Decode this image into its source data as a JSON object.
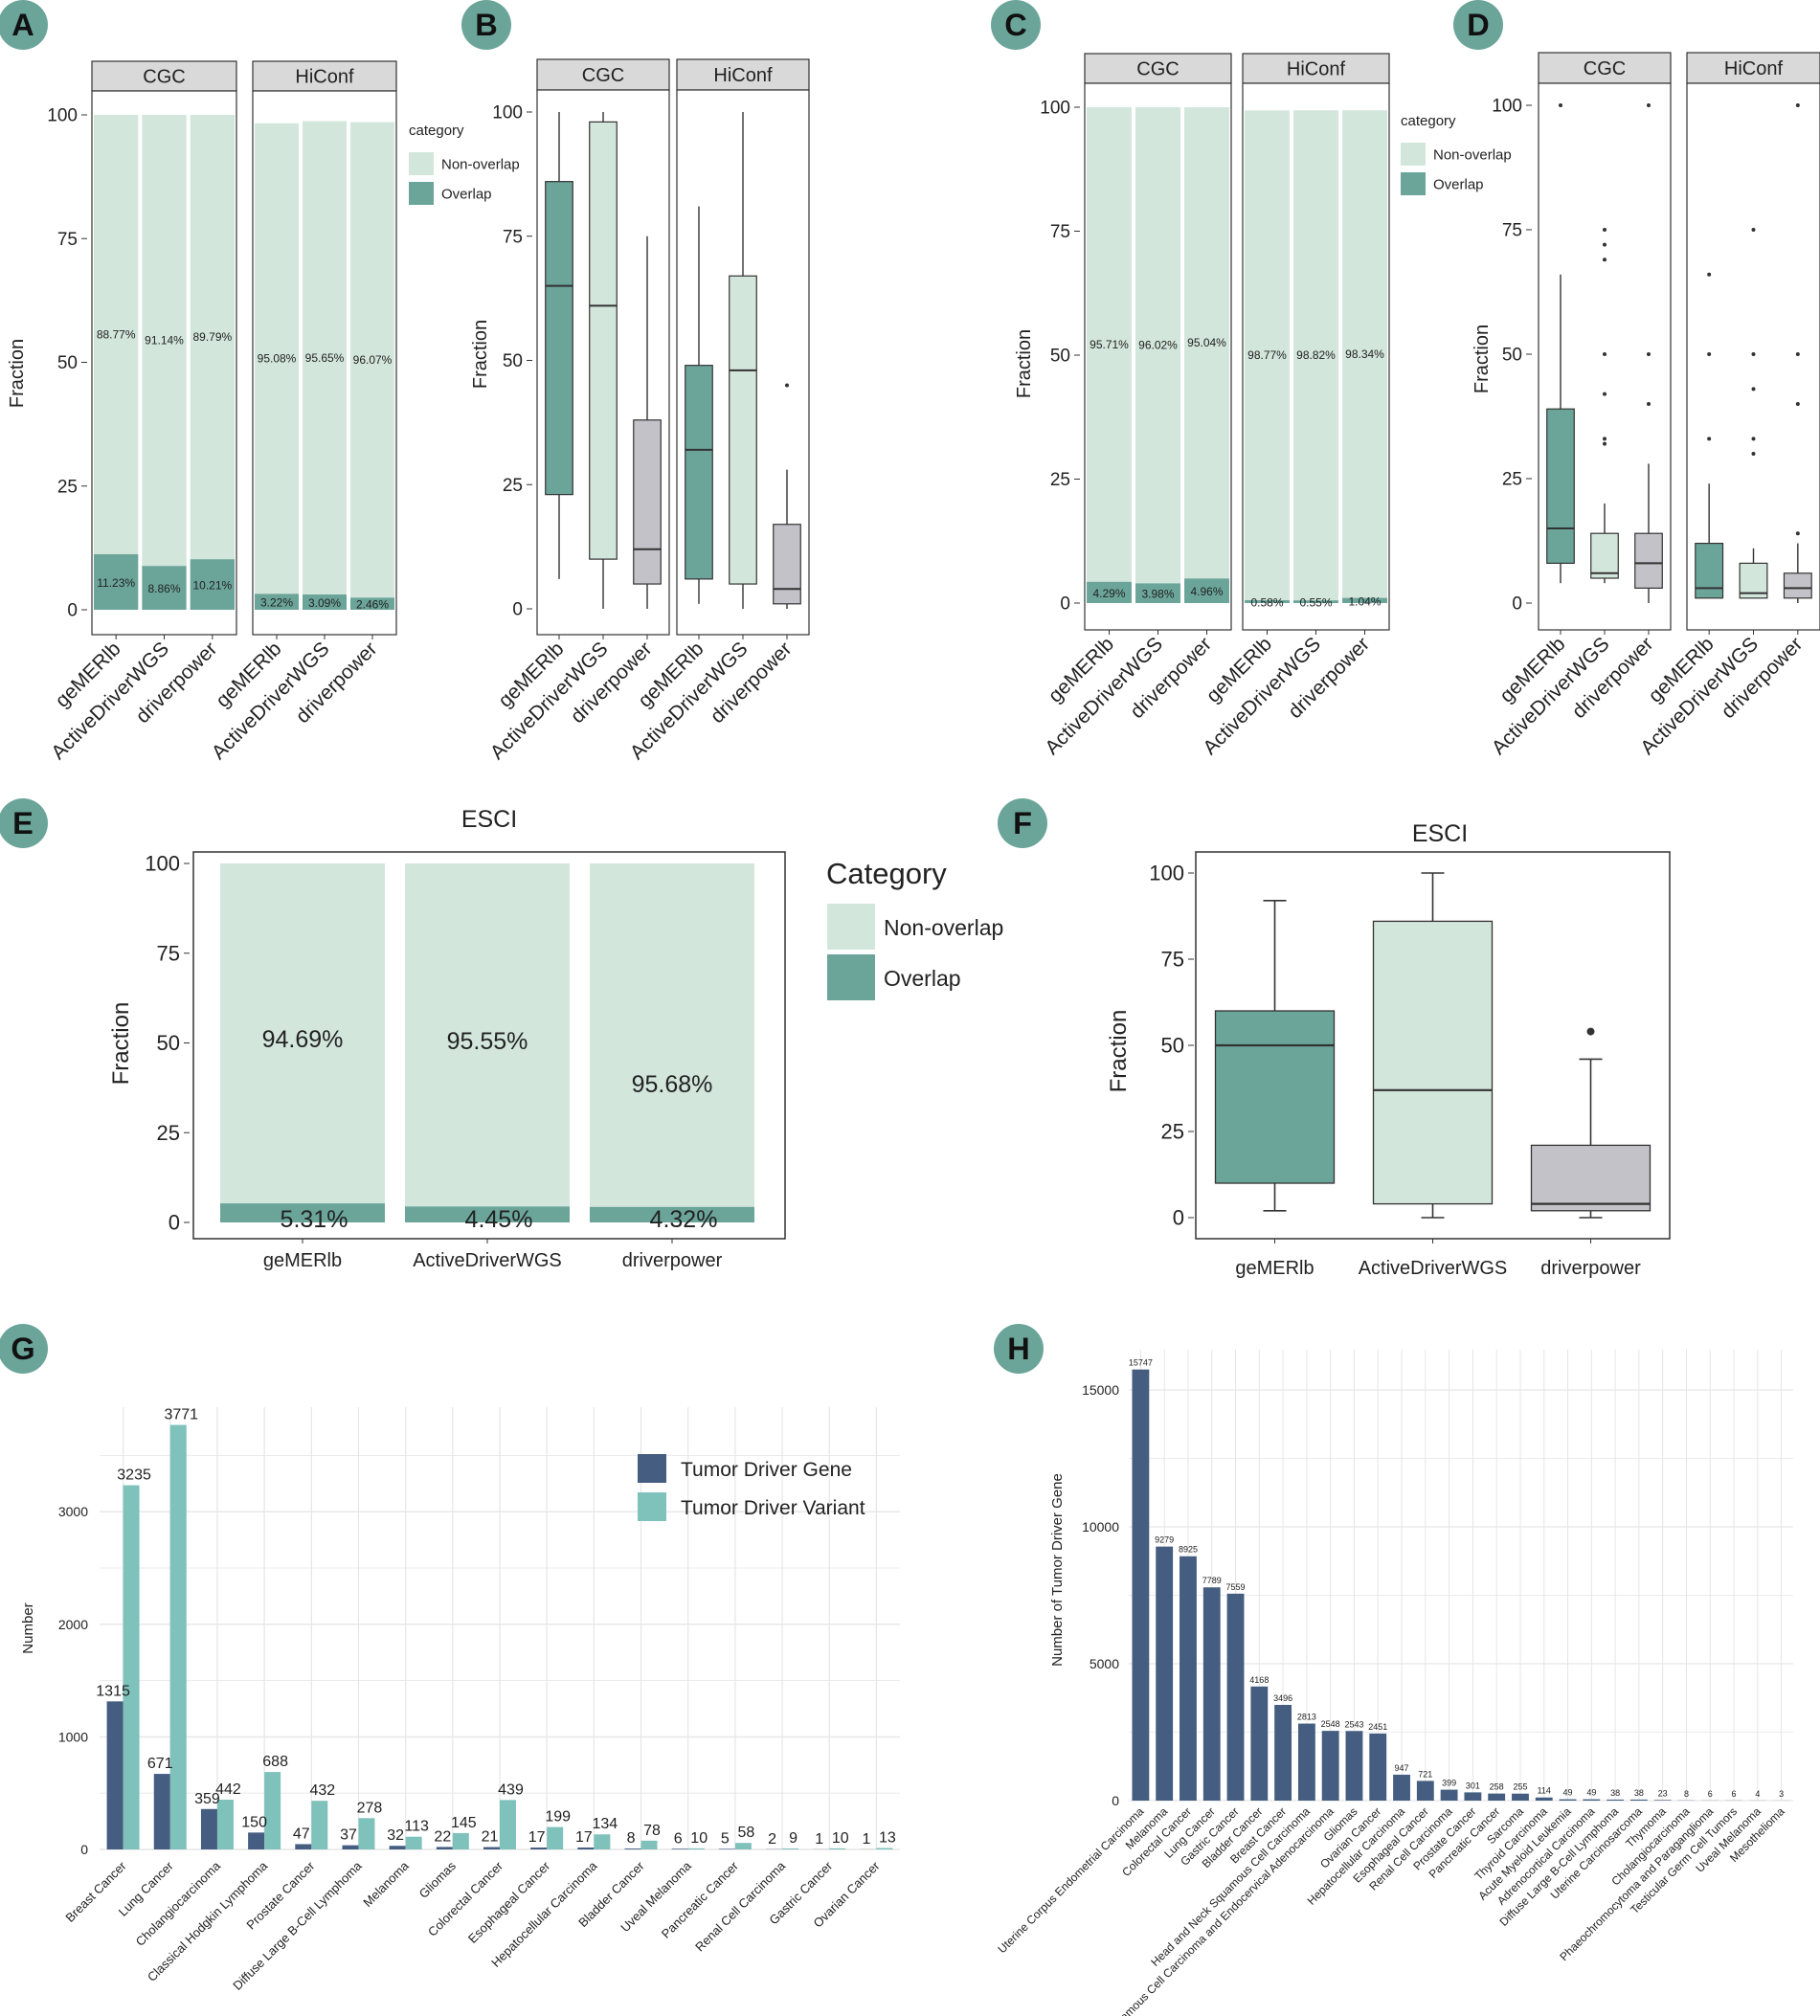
{
  "colors": {
    "overlap": "#6ba59a",
    "nonoverlap": "#d3e6dc",
    "grey_box": "#c2c2c8",
    "badge": "#6ba59a",
    "driver_gene": "#445d80",
    "driver_variant": "#7fc1bb",
    "strip": "#d9d9d9"
  },
  "chart_data": [
    {
      "panel": "A",
      "type": "bar",
      "stacked": true,
      "facets": [
        "CGC",
        "HiConf"
      ],
      "categories": [
        "geMERlb",
        "ActiveDriverWGS",
        "driverpower"
      ],
      "ylabel": "Fraction",
      "ylim": [
        0,
        100
      ],
      "yticks": [
        "0",
        "25",
        "50",
        "75",
        "100"
      ],
      "legend_title": "category",
      "legend": [
        "Non-overlap",
        "Overlap"
      ],
      "series": [
        {
          "facet": "CGC",
          "overlap": [
            11.23,
            8.86,
            10.21
          ],
          "nonoverlap": [
            88.77,
            91.14,
            89.79
          ],
          "overlap_labels": [
            "11.23%",
            "8.86%",
            "10.21%"
          ],
          "nonoverlap_labels": [
            "88.77%",
            "91.14%",
            "89.79%"
          ]
        },
        {
          "facet": "HiConf",
          "overlap": [
            3.22,
            3.09,
            2.46
          ],
          "nonoverlap": [
            95.08,
            95.65,
            96.07
          ],
          "overlap_labels": [
            "3.22%",
            "3.09%",
            "2.46%"
          ],
          "nonoverlap_labels": [
            "95.08%",
            "95.65%",
            "96.07%"
          ]
        }
      ]
    },
    {
      "panel": "B",
      "type": "box",
      "facets": [
        "CGC",
        "HiConf"
      ],
      "categories": [
        "geMERlb",
        "ActiveDriverWGS",
        "driverpower"
      ],
      "ylabel": "Fraction",
      "ylim": [
        0,
        100
      ],
      "yticks": [
        "0",
        "25",
        "50",
        "75",
        "100"
      ],
      "series": [
        {
          "facet": "CGC",
          "boxes": [
            {
              "min": 6,
              "q1": 23,
              "median": 65,
              "q3": 86,
              "max": 100,
              "outliers": []
            },
            {
              "min": 0,
              "q1": 10,
              "median": 61,
              "q3": 98,
              "max": 100,
              "outliers": []
            },
            {
              "min": 0,
              "q1": 5,
              "median": 12,
              "q3": 38,
              "max": 75,
              "outliers": []
            }
          ]
        },
        {
          "facet": "HiConf",
          "boxes": [
            {
              "min": 1,
              "q1": 6,
              "median": 32,
              "q3": 49,
              "max": 81,
              "outliers": []
            },
            {
              "min": 0,
              "q1": 5,
              "median": 48,
              "q3": 67,
              "max": 100,
              "outliers": []
            },
            {
              "min": 0,
              "q1": 1,
              "median": 4,
              "q3": 17,
              "max": 28,
              "outliers": [
                45
              ]
            }
          ]
        }
      ]
    },
    {
      "panel": "C",
      "type": "bar",
      "stacked": true,
      "facets": [
        "CGC",
        "HiConf"
      ],
      "categories": [
        "geMERlb",
        "ActiveDriverWGS",
        "driverpower"
      ],
      "ylabel": "Fraction",
      "ylim": [
        0,
        100
      ],
      "yticks": [
        "0",
        "25",
        "50",
        "75",
        "100"
      ],
      "legend_title": "category",
      "legend": [
        "Non-overlap",
        "Overlap"
      ],
      "series": [
        {
          "facet": "CGC",
          "overlap": [
            4.29,
            3.98,
            4.96
          ],
          "nonoverlap": [
            95.71,
            96.02,
            95.04
          ],
          "overlap_labels": [
            "4.29%",
            "3.98%",
            "4.96%"
          ],
          "nonoverlap_labels": [
            "95.71%",
            "96.02%",
            "95.04%"
          ]
        },
        {
          "facet": "HiConf",
          "overlap": [
            0.58,
            0.55,
            1.04
          ],
          "nonoverlap": [
            98.77,
            98.82,
            98.34
          ],
          "overlap_labels": [
            "0.58%",
            "0.55%",
            "1.04%"
          ],
          "nonoverlap_labels": [
            "98.77%",
            "98.82%",
            "98.34%"
          ]
        }
      ]
    },
    {
      "panel": "D",
      "type": "box",
      "facets": [
        "CGC",
        "HiConf"
      ],
      "categories": [
        "geMERlb",
        "ActiveDriverWGS",
        "driverpower"
      ],
      "ylabel": "Fraction",
      "ylim": [
        0,
        100
      ],
      "yticks": [
        "0",
        "25",
        "50",
        "75",
        "100"
      ],
      "series": [
        {
          "facet": "CGC",
          "boxes": [
            {
              "min": 4,
              "q1": 8,
              "median": 15,
              "q3": 39,
              "max": 66,
              "outliers": [
                100
              ]
            },
            {
              "min": 4,
              "q1": 5,
              "median": 6,
              "q3": 14,
              "max": 20,
              "outliers": [
                32,
                33,
                42,
                50,
                69,
                72,
                75
              ]
            },
            {
              "min": 0,
              "q1": 3,
              "median": 8,
              "q3": 14,
              "max": 28,
              "outliers": [
                40,
                50,
                100
              ]
            }
          ]
        },
        {
          "facet": "HiConf",
          "boxes": [
            {
              "min": 1,
              "q1": 1,
              "median": 3,
              "q3": 12,
              "max": 24,
              "outliers": [
                33,
                50,
                66
              ]
            },
            {
              "min": 1,
              "q1": 1,
              "median": 2,
              "q3": 8,
              "max": 11,
              "outliers": [
                30,
                33,
                43,
                50,
                75
              ]
            },
            {
              "min": 0,
              "q1": 1,
              "median": 3,
              "q3": 6,
              "max": 12,
              "outliers": [
                14,
                40,
                50,
                100
              ]
            }
          ]
        }
      ]
    },
    {
      "panel": "E",
      "type": "bar",
      "stacked": true,
      "title": "ESCI",
      "categories": [
        "geMERlb",
        "ActiveDriverWGS",
        "driverpower"
      ],
      "ylabel": "Fraction",
      "ylim": [
        0,
        100
      ],
      "yticks": [
        "0",
        "25",
        "50",
        "75",
        "100"
      ],
      "legend_title": "Category",
      "legend": [
        "Non-overlap",
        "Overlap"
      ],
      "overlap": [
        5.31,
        4.45,
        4.32
      ],
      "nonoverlap": [
        94.69,
        95.55,
        95.68
      ],
      "overlap_labels": [
        "5.31%",
        "4.45%",
        "4.32%"
      ],
      "nonoverlap_labels": [
        "94.69%",
        "95.55%",
        "95.68%"
      ]
    },
    {
      "panel": "F",
      "type": "box",
      "title": "ESCI",
      "categories": [
        "geMERlb",
        "ActiveDriverWGS",
        "driverpower"
      ],
      "ylabel": "Fraction",
      "ylim": [
        0,
        100
      ],
      "yticks": [
        "0",
        "25",
        "50",
        "75",
        "100"
      ],
      "boxes": [
        {
          "min": 2,
          "q1": 10,
          "median": 50,
          "q3": 60,
          "max": 92,
          "outliers": []
        },
        {
          "min": 0,
          "q1": 4,
          "median": 37,
          "q3": 86,
          "max": 100,
          "outliers": []
        },
        {
          "min": 0,
          "q1": 2,
          "median": 4,
          "q3": 21,
          "max": 46,
          "outliers": [
            54
          ]
        }
      ]
    },
    {
      "panel": "G",
      "type": "bar",
      "ylabel": "Number",
      "ylim": [
        0,
        4000
      ],
      "yticks": [
        "0",
        "1000",
        "2000",
        "3000"
      ],
      "legend": [
        "Tumor Driver Gene",
        "Tumor Driver Variant"
      ],
      "categories": [
        "Breast Cancer",
        "Lung Cancer",
        "Cholangiocarcinoma",
        "Classical Hodgkin Lymphoma",
        "Prostate Cancer",
        "Diffuse Large B-Cell Lymphoma",
        "Melanoma",
        "Gliomas",
        "Colorectal Cancer",
        "Esophageal Cancer",
        "Hepatocellular Carcinoma",
        "Bladder Cancer",
        "Uveal Melanoma",
        "Pancreatic Cancer",
        "Renal Cell Carcinoma",
        "Gastric Cancer",
        "Ovarian Cancer"
      ],
      "series": [
        {
          "name": "Tumor Driver Gene",
          "values": [
            1315,
            671,
            359,
            150,
            47,
            37,
            32,
            22,
            21,
            17,
            17,
            8,
            6,
            5,
            2,
            1,
            1
          ],
          "labels": [
            "1315",
            "671",
            "359",
            "150",
            "47",
            "37",
            "32",
            "22",
            "21",
            "17",
            "17",
            "8",
            "6",
            "5",
            "2",
            "1",
            "1"
          ]
        },
        {
          "name": "Tumor Driver Variant",
          "values": [
            3235,
            3771,
            442,
            688,
            432,
            278,
            113,
            145,
            439,
            199,
            134,
            78,
            10,
            58,
            9,
            10,
            13
          ],
          "labels": [
            "3235",
            "3771",
            "442",
            "688",
            "432",
            "278",
            "113",
            "145",
            "439",
            "199",
            "134",
            "78",
            "10",
            "58",
            "9",
            "10",
            "13"
          ]
        }
      ]
    },
    {
      "panel": "H",
      "type": "bar",
      "ylabel": "Number of Tumor Driver Gene",
      "ylim": [
        0,
        17000
      ],
      "yticks": [
        "0",
        "5000",
        "10000",
        "15000"
      ],
      "categories": [
        "Uterine Corpus Endometrial Carcinoma",
        "Melanoma",
        "Colorectal Cancer",
        "Lung Cancer",
        "Gastric Cancer",
        "Bladder Cancer",
        "Breast Cancer",
        "Head and Neck Squamous Cell Carcinoma",
        "Cervical Squamous Cell Carcinoma and Endocervical Adenocarcinoma",
        "Gliomas",
        "Ovarian Cancer",
        "Hepatocellular Carcinoma",
        "Esophageal Cancer",
        "Renal Cell Carcinoma",
        "Prostate Cancer",
        "Pancreatic Cancer",
        "Sarcoma",
        "Thyroid Carcinoma",
        "Acute Myeloid Leukemia",
        "Adrenocortical Carcinoma",
        "Diffuse Large B-Cell Lymphoma",
        "Uterine Carcinosarcoma",
        "Thymoma",
        "Cholangiocarcinoma",
        "Phaeochromocytoma and Paraganglioma",
        "Testicular Germ Cell Tumors",
        "Uveal Melanoma",
        "Mesothelioma"
      ],
      "values": [
        15747,
        9279,
        8925,
        7789,
        7559,
        4168,
        3496,
        2813,
        2548,
        2543,
        2451,
        947,
        721,
        399,
        301,
        258,
        255,
        114,
        49,
        49,
        38,
        38,
        23,
        8,
        6,
        6,
        4,
        3
      ],
      "labels": [
        "15747",
        "9279",
        "8925",
        "7789",
        "7559",
        "4168",
        "3496",
        "2813",
        "2548",
        "2543",
        "2451",
        "947",
        "721",
        "399",
        "301",
        "258",
        "255",
        "114",
        "49",
        "49",
        "38",
        "38",
        "23",
        "8",
        "6",
        "6",
        "4",
        "3"
      ]
    }
  ]
}
